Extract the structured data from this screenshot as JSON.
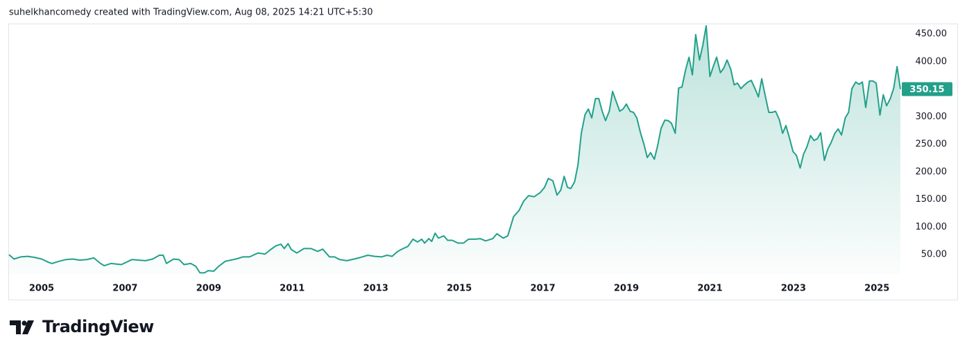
{
  "header": "suhelkhancomedy created with TradingView.com, Aug 08, 2025 14:21 UTC+5:30",
  "brand": "TradingView",
  "chart_data": {
    "type": "area",
    "series": [
      {
        "color": "#22a08a",
        "x": [
          2004.22,
          2004.34,
          2004.5,
          2004.67,
          2004.83,
          2005.0,
          2005.17,
          2005.25,
          2005.42,
          2005.58,
          2005.75,
          2005.91,
          2006.08,
          2006.25,
          2006.41,
          2006.5,
          2006.66,
          2006.91,
          2007.16,
          2007.33,
          2007.49,
          2007.66,
          2007.82,
          2007.91,
          2007.99,
          2008.16,
          2008.29,
          2008.41,
          2008.57,
          2008.69,
          2008.79,
          2008.9,
          2008.99,
          2009.12,
          2009.24,
          2009.4,
          2009.65,
          2009.82,
          2009.98,
          2010.18,
          2010.35,
          2010.48,
          2010.61,
          2010.73,
          2010.81,
          2010.9,
          2010.98,
          2011.11,
          2011.28,
          2011.45,
          2011.61,
          2011.73,
          2011.89,
          2012.01,
          2012.14,
          2012.31,
          2012.48,
          2012.64,
          2012.81,
          2012.97,
          2013.14,
          2013.27,
          2013.39,
          2013.51,
          2013.6,
          2013.77,
          2013.89,
          2014.0,
          2014.1,
          2014.17,
          2014.27,
          2014.34,
          2014.42,
          2014.5,
          2014.63,
          2014.72,
          2014.83,
          2014.97,
          2015.1,
          2015.22,
          2015.38,
          2015.5,
          2015.63,
          2015.8,
          2015.9,
          2016.05,
          2016.16,
          2016.3,
          2016.43,
          2016.54,
          2016.66,
          2016.79,
          2016.93,
          2017.04,
          2017.13,
          2017.24,
          2017.34,
          2017.43,
          2017.51,
          2017.59,
          2017.67,
          2017.76,
          2017.84,
          2017.92,
          2018.01,
          2018.09,
          2018.17,
          2018.26,
          2018.34,
          2018.42,
          2018.5,
          2018.59,
          2018.67,
          2018.75,
          2018.84,
          2018.92,
          2019.0,
          2019.09,
          2019.17,
          2019.25,
          2019.34,
          2019.42,
          2019.5,
          2019.58,
          2019.67,
          2019.75,
          2019.83,
          2019.92,
          2020.0,
          2020.08,
          2020.17,
          2020.25,
          2020.33,
          2020.42,
          2020.5,
          2020.58,
          2020.66,
          2020.75,
          2020.83,
          2020.91,
          2021.0,
          2021.08,
          2021.16,
          2021.25,
          2021.33,
          2021.41,
          2021.5,
          2021.58,
          2021.66,
          2021.74,
          2021.83,
          2021.91,
          2021.99,
          2022.08,
          2022.16,
          2022.24,
          2022.33,
          2022.41,
          2022.49,
          2022.57,
          2022.66,
          2022.74,
          2022.82,
          2022.91,
          2022.99,
          2023.07,
          2023.16,
          2023.24,
          2023.32,
          2023.41,
          2023.49,
          2023.57,
          2023.65,
          2023.74,
          2023.82,
          2023.9,
          2023.99,
          2024.07,
          2024.15,
          2024.24,
          2024.32,
          2024.4,
          2024.49,
          2024.57,
          2024.65,
          2024.73,
          2024.82,
          2024.9,
          2024.98,
          2025.07,
          2025.15,
          2025.23,
          2025.32,
          2025.4,
          2025.48,
          2025.56
        ],
        "values": [
          50,
          42,
          46,
          47,
          45,
          42,
          36,
          34,
          38,
          41,
          42,
          40,
          41,
          44,
          34,
          30,
          34,
          32,
          41,
          40,
          39,
          42,
          49,
          49,
          34,
          42,
          41,
          32,
          34,
          29,
          17,
          17,
          21,
          20,
          29,
          38,
          42,
          46,
          46,
          53,
          51,
          59,
          66,
          69,
          61,
          70,
          59,
          53,
          61,
          61,
          56,
          60,
          46,
          46,
          41,
          39,
          42,
          45,
          49,
          47,
          46,
          49,
          47,
          55,
          59,
          65,
          78,
          73,
          78,
          71,
          79,
          74,
          89,
          80,
          84,
          76,
          76,
          71,
          71,
          78,
          78,
          79,
          75,
          79,
          88,
          80,
          84,
          119,
          130,
          147,
          157,
          155,
          162,
          172,
          188,
          184,
          158,
          167,
          192,
          172,
          170,
          182,
          212,
          270,
          304,
          314,
          298,
          333,
          333,
          310,
          293,
          310,
          346,
          329,
          310,
          314,
          323,
          310,
          308,
          298,
          270,
          250,
          226,
          235,
          223,
          248,
          279,
          294,
          293,
          288,
          270,
          352,
          354,
          386,
          408,
          376,
          449,
          403,
          430,
          465,
          373,
          391,
          408,
          380,
          388,
          403,
          386,
          358,
          361,
          351,
          358,
          363,
          366,
          351,
          336,
          369,
          336,
          308,
          308,
          310,
          295,
          270,
          284,
          260,
          237,
          230,
          207,
          232,
          245,
          266,
          257,
          260,
          271,
          221,
          241,
          253,
          270,
          278,
          267,
          298,
          308,
          351,
          363,
          359,
          363,
          317,
          365,
          365,
          361,
          303,
          340,
          320,
          333,
          352,
          391,
          350.15
        ]
      }
    ],
    "xlim": [
      2004.22,
      2025.56
    ],
    "xticks": [
      2005,
      2007,
      2009,
      2011,
      2013,
      2015,
      2017,
      2019,
      2021,
      2023,
      2025
    ],
    "ylim": [
      15,
      469
    ],
    "yticks": [
      {
        "value": 50,
        "label": "50.00"
      },
      {
        "value": 100,
        "label": "100.00"
      },
      {
        "value": 150,
        "label": "150.00"
      },
      {
        "value": 200,
        "label": "200.00"
      },
      {
        "value": 250,
        "label": "250.00"
      },
      {
        "value": 300,
        "label": "300.00"
      },
      {
        "value": 350,
        "label": "350.00"
      },
      {
        "value": 400,
        "label": "400.00"
      },
      {
        "value": 450,
        "label": "450.00"
      }
    ],
    "grid": false
  }
}
